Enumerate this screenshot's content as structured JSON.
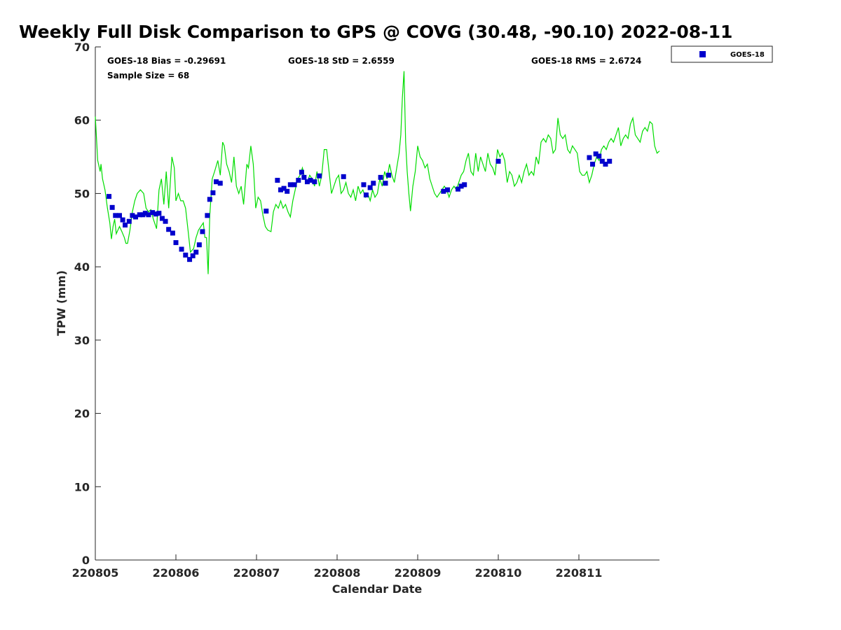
{
  "chart_data": {
    "type": "line",
    "title": "Weekly Full Disk Comparison to GPS @ COVG (30.48, -90.10) 2022-08-11",
    "xlabel": "Calendar Date",
    "ylabel": "TPW (mm)",
    "xlim": [
      0,
      7
    ],
    "ylim": [
      0,
      70
    ],
    "yticks": [
      0,
      10,
      20,
      30,
      40,
      50,
      60,
      70
    ],
    "xticks": [
      0,
      1,
      2,
      3,
      4,
      5,
      6
    ],
    "xtick_labels": [
      "220805",
      "220806",
      "220807",
      "220808",
      "220809",
      "220810",
      "220811"
    ],
    "grid": false,
    "legend_position": "outside-top-right",
    "stats": {
      "bias": "GOES-18 Bias = -0.29691",
      "std": "GOES-18 StD = 2.6559",
      "rms": "GOES-18 RMS = 2.6724",
      "sample": "Sample Size = 68"
    },
    "series": [
      {
        "name": "GOES-18",
        "kind": "scatter",
        "color": "#0000cc",
        "points": [
          [
            0.17,
            49.6
          ],
          [
            0.21,
            48.1
          ],
          [
            0.25,
            47.0
          ],
          [
            0.3,
            47.0
          ],
          [
            0.34,
            46.4
          ],
          [
            0.37,
            45.7
          ],
          [
            0.42,
            46.2
          ],
          [
            0.46,
            47.0
          ],
          [
            0.5,
            46.8
          ],
          [
            0.55,
            47.1
          ],
          [
            0.59,
            47.1
          ],
          [
            0.62,
            47.3
          ],
          [
            0.66,
            47.1
          ],
          [
            0.71,
            47.4
          ],
          [
            0.75,
            47.2
          ],
          [
            0.79,
            47.3
          ],
          [
            0.83,
            46.6
          ],
          [
            0.87,
            46.2
          ],
          [
            0.91,
            45.1
          ],
          [
            0.96,
            44.6
          ],
          [
            1.0,
            43.3
          ],
          [
            1.07,
            42.4
          ],
          [
            1.12,
            41.6
          ],
          [
            1.17,
            41.0
          ],
          [
            1.21,
            41.5
          ],
          [
            1.25,
            42.0
          ],
          [
            1.29,
            43.0
          ],
          [
            1.33,
            44.8
          ],
          [
            1.39,
            47.0
          ],
          [
            1.42,
            49.2
          ],
          [
            1.46,
            50.1
          ],
          [
            1.5,
            51.6
          ],
          [
            1.55,
            51.4
          ],
          [
            2.12,
            47.6
          ],
          [
            2.26,
            51.8
          ],
          [
            2.3,
            50.5
          ],
          [
            2.34,
            50.7
          ],
          [
            2.38,
            50.3
          ],
          [
            2.42,
            51.2
          ],
          [
            2.47,
            51.2
          ],
          [
            2.52,
            51.8
          ],
          [
            2.56,
            52.9
          ],
          [
            2.59,
            52.2
          ],
          [
            2.63,
            51.6
          ],
          [
            2.67,
            51.8
          ],
          [
            2.72,
            51.6
          ],
          [
            2.78,
            52.4
          ],
          [
            3.08,
            52.3
          ],
          [
            3.33,
            51.2
          ],
          [
            3.36,
            49.8
          ],
          [
            3.41,
            50.8
          ],
          [
            3.45,
            51.4
          ],
          [
            3.54,
            52.2
          ],
          [
            3.6,
            51.4
          ],
          [
            3.64,
            52.5
          ],
          [
            4.32,
            50.3
          ],
          [
            4.37,
            50.5
          ],
          [
            4.5,
            50.6
          ],
          [
            4.54,
            51.0
          ],
          [
            4.58,
            51.2
          ],
          [
            5.0,
            54.4
          ],
          [
            6.13,
            54.9
          ],
          [
            6.17,
            54.0
          ],
          [
            6.21,
            55.4
          ],
          [
            6.25,
            55.1
          ],
          [
            6.29,
            54.4
          ],
          [
            6.33,
            54.0
          ],
          [
            6.38,
            54.4
          ]
        ]
      },
      {
        "name": "",
        "kind": "line",
        "color": "#00dd00",
        "points": [
          [
            0,
            60.5
          ],
          [
            0.03,
            54.5
          ],
          [
            0.06,
            53.0
          ],
          [
            0.07,
            54.0
          ],
          [
            0.09,
            52.0
          ],
          [
            0.12,
            50.5
          ],
          [
            0.15,
            48.0
          ],
          [
            0.18,
            46.0
          ],
          [
            0.2,
            43.8
          ],
          [
            0.22,
            45.5
          ],
          [
            0.24,
            46.5
          ],
          [
            0.26,
            44.5
          ],
          [
            0.28,
            45.0
          ],
          [
            0.3,
            45.5
          ],
          [
            0.33,
            44.8
          ],
          [
            0.36,
            44.0
          ],
          [
            0.38,
            43.2
          ],
          [
            0.4,
            43.2
          ],
          [
            0.43,
            45.0
          ],
          [
            0.46,
            47.5
          ],
          [
            0.49,
            49.0
          ],
          [
            0.52,
            50.0
          ],
          [
            0.56,
            50.5
          ],
          [
            0.6,
            50.0
          ],
          [
            0.63,
            48.0
          ],
          [
            0.66,
            47.5
          ],
          [
            0.69,
            47.8
          ],
          [
            0.72,
            46.5
          ],
          [
            0.76,
            45.2
          ],
          [
            0.79,
            50.5
          ],
          [
            0.82,
            52.0
          ],
          [
            0.85,
            48.5
          ],
          [
            0.88,
            53.0
          ],
          [
            0.91,
            48.0
          ],
          [
            0.95,
            55.0
          ],
          [
            0.98,
            53.5
          ],
          [
            1.0,
            49.0
          ],
          [
            1.03,
            50.0
          ],
          [
            1.06,
            49.0
          ],
          [
            1.09,
            49.0
          ],
          [
            1.12,
            48.0
          ],
          [
            1.15,
            45.0
          ],
          [
            1.18,
            42.0
          ],
          [
            1.22,
            42.5
          ],
          [
            1.25,
            44.0
          ],
          [
            1.28,
            45.0
          ],
          [
            1.31,
            45.5
          ],
          [
            1.34,
            46.0
          ],
          [
            1.36,
            44.0
          ],
          [
            1.38,
            44.0
          ],
          [
            1.4,
            39.0
          ],
          [
            1.42,
            47.0
          ],
          [
            1.45,
            52.0
          ],
          [
            1.48,
            53.0
          ],
          [
            1.52,
            54.5
          ],
          [
            1.55,
            52.5
          ],
          [
            1.58,
            57.0
          ],
          [
            1.6,
            56.5
          ],
          [
            1.63,
            54.0
          ],
          [
            1.66,
            53.0
          ],
          [
            1.69,
            51.5
          ],
          [
            1.72,
            55.0
          ],
          [
            1.75,
            51.0
          ],
          [
            1.78,
            50.0
          ],
          [
            1.81,
            51.0
          ],
          [
            1.84,
            48.5
          ],
          [
            1.88,
            54.0
          ],
          [
            1.9,
            53.5
          ],
          [
            1.93,
            56.5
          ],
          [
            1.96,
            54.0
          ],
          [
            1.99,
            48.0
          ],
          [
            2.02,
            49.5
          ],
          [
            2.05,
            49.0
          ],
          [
            2.08,
            47.0
          ],
          [
            2.11,
            45.5
          ],
          [
            2.14,
            45.0
          ],
          [
            2.18,
            44.8
          ],
          [
            2.21,
            47.5
          ],
          [
            2.24,
            48.5
          ],
          [
            2.27,
            48.0
          ],
          [
            2.3,
            49.0
          ],
          [
            2.33,
            48.0
          ],
          [
            2.36,
            48.5
          ],
          [
            2.39,
            47.5
          ],
          [
            2.42,
            46.8
          ],
          [
            2.45,
            49.0
          ],
          [
            2.48,
            50.5
          ],
          [
            2.51,
            52.0
          ],
          [
            2.54,
            52.5
          ],
          [
            2.57,
            53.5
          ],
          [
            2.6,
            52.0
          ],
          [
            2.63,
            51.5
          ],
          [
            2.66,
            52.5
          ],
          [
            2.69,
            52.0
          ],
          [
            2.72,
            51.0
          ],
          [
            2.75,
            53.0
          ],
          [
            2.78,
            51.0
          ],
          [
            2.81,
            52.5
          ],
          [
            2.84,
            56.0
          ],
          [
            2.87,
            56.0
          ],
          [
            2.9,
            53.0
          ],
          [
            2.93,
            50.0
          ],
          [
            2.96,
            51.0
          ],
          [
            2.99,
            52.0
          ],
          [
            3.02,
            52.5
          ],
          [
            3.05,
            50.0
          ],
          [
            3.08,
            50.5
          ],
          [
            3.11,
            51.5
          ],
          [
            3.14,
            50.0
          ],
          [
            3.17,
            49.5
          ],
          [
            3.2,
            50.5
          ],
          [
            3.23,
            49.0
          ],
          [
            3.26,
            51.0
          ],
          [
            3.29,
            50.0
          ],
          [
            3.32,
            50.5
          ],
          [
            3.35,
            49.5
          ],
          [
            3.38,
            50.0
          ],
          [
            3.41,
            49.0
          ],
          [
            3.44,
            50.5
          ],
          [
            3.47,
            49.5
          ],
          [
            3.5,
            50.0
          ],
          [
            3.53,
            52.0
          ],
          [
            3.56,
            51.0
          ],
          [
            3.59,
            53.0
          ],
          [
            3.62,
            52.0
          ],
          [
            3.65,
            54.0
          ],
          [
            3.68,
            52.5
          ],
          [
            3.71,
            51.5
          ],
          [
            3.74,
            53.5
          ],
          [
            3.77,
            55.5
          ],
          [
            3.79,
            58.0
          ],
          [
            3.81,
            63.0
          ],
          [
            3.83,
            66.7
          ],
          [
            3.85,
            57.0
          ],
          [
            3.87,
            53.0
          ],
          [
            3.89,
            50.0
          ],
          [
            3.91,
            47.6
          ],
          [
            3.94,
            51.0
          ],
          [
            3.97,
            53.0
          ],
          [
            4.0,
            56.5
          ],
          [
            4.03,
            55.0
          ],
          [
            4.06,
            54.5
          ],
          [
            4.09,
            53.5
          ],
          [
            4.12,
            54.0
          ],
          [
            4.15,
            52.0
          ],
          [
            4.18,
            51.0
          ],
          [
            4.21,
            50.0
          ],
          [
            4.24,
            49.5
          ],
          [
            4.27,
            50.0
          ],
          [
            4.3,
            50.5
          ],
          [
            4.33,
            51.0
          ],
          [
            4.36,
            50.5
          ],
          [
            4.39,
            49.5
          ],
          [
            4.42,
            50.5
          ],
          [
            4.45,
            51.0
          ],
          [
            4.48,
            50.5
          ],
          [
            4.51,
            51.5
          ],
          [
            4.54,
            52.5
          ],
          [
            4.57,
            53.0
          ],
          [
            4.6,
            54.5
          ],
          [
            4.63,
            55.5
          ],
          [
            4.66,
            53.0
          ],
          [
            4.69,
            52.5
          ],
          [
            4.72,
            55.5
          ],
          [
            4.75,
            53.0
          ],
          [
            4.78,
            55.0
          ],
          [
            4.81,
            54.0
          ],
          [
            4.84,
            53.0
          ],
          [
            4.87,
            55.5
          ],
          [
            4.9,
            54.0
          ],
          [
            4.93,
            53.5
          ],
          [
            4.96,
            52.5
          ],
          [
            4.99,
            56.0
          ],
          [
            5.02,
            55.0
          ],
          [
            5.05,
            55.5
          ],
          [
            5.08,
            54.5
          ],
          [
            5.11,
            51.5
          ],
          [
            5.14,
            53.0
          ],
          [
            5.17,
            52.5
          ],
          [
            5.2,
            51.0
          ],
          [
            5.23,
            51.5
          ],
          [
            5.26,
            52.5
          ],
          [
            5.29,
            51.5
          ],
          [
            5.32,
            53.0
          ],
          [
            5.35,
            54.0
          ],
          [
            5.38,
            52.5
          ],
          [
            5.41,
            53.0
          ],
          [
            5.44,
            52.5
          ],
          [
            5.47,
            55.0
          ],
          [
            5.5,
            54.0
          ],
          [
            5.53,
            57.0
          ],
          [
            5.56,
            57.5
          ],
          [
            5.59,
            57.0
          ],
          [
            5.62,
            58.0
          ],
          [
            5.65,
            57.5
          ],
          [
            5.68,
            55.5
          ],
          [
            5.71,
            56.0
          ],
          [
            5.74,
            60.3
          ],
          [
            5.77,
            58.0
          ],
          [
            5.8,
            57.5
          ],
          [
            5.83,
            58.0
          ],
          [
            5.86,
            56.0
          ],
          [
            5.89,
            55.5
          ],
          [
            5.92,
            56.5
          ],
          [
            5.95,
            56.0
          ],
          [
            5.98,
            55.5
          ],
          [
            6.01,
            53.0
          ],
          [
            6.04,
            52.5
          ],
          [
            6.07,
            52.5
          ],
          [
            6.1,
            53.0
          ],
          [
            6.13,
            51.5
          ],
          [
            6.16,
            52.5
          ],
          [
            6.19,
            54.0
          ],
          [
            6.22,
            55.0
          ],
          [
            6.25,
            54.5
          ],
          [
            6.28,
            56.0
          ],
          [
            6.31,
            56.5
          ],
          [
            6.34,
            56.0
          ],
          [
            6.37,
            57.0
          ],
          [
            6.4,
            57.5
          ],
          [
            6.43,
            57.0
          ],
          [
            6.46,
            58.0
          ],
          [
            6.49,
            59.0
          ],
          [
            6.52,
            56.5
          ],
          [
            6.55,
            57.5
          ],
          [
            6.58,
            58.0
          ],
          [
            6.61,
            57.5
          ],
          [
            6.64,
            59.5
          ],
          [
            6.67,
            60.3
          ],
          [
            6.7,
            58.0
          ],
          [
            6.73,
            57.5
          ],
          [
            6.76,
            57.0
          ],
          [
            6.79,
            58.5
          ],
          [
            6.82,
            59.0
          ],
          [
            6.85,
            58.5
          ],
          [
            6.88,
            59.8
          ],
          [
            6.91,
            59.5
          ],
          [
            6.94,
            56.5
          ],
          [
            6.97,
            55.5
          ],
          [
            7.0,
            55.8
          ]
        ]
      }
    ]
  }
}
